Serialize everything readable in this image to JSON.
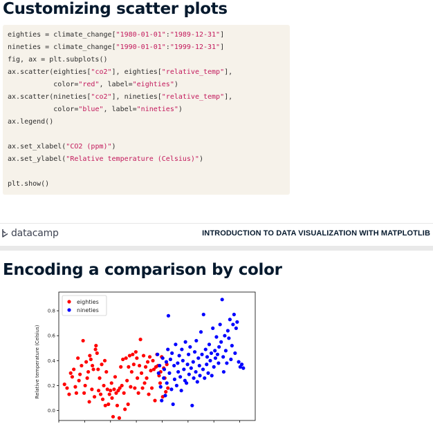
{
  "slide1": {
    "title": "Customizing scatter plots",
    "code_lines": [
      [
        {
          "t": "eighties = climate_change["
        },
        {
          "t": "\"1980-01-01\"",
          "s": 1
        },
        {
          "t": ":"
        },
        {
          "t": "\"1989-12-31\"",
          "s": 1
        },
        {
          "t": "]"
        }
      ],
      [
        {
          "t": "nineties = climate_change["
        },
        {
          "t": "\"1990-01-01\"",
          "s": 1
        },
        {
          "t": ":"
        },
        {
          "t": "\"1999-12-31\"",
          "s": 1
        },
        {
          "t": "]"
        }
      ],
      [
        {
          "t": "fig, ax = plt.subplots()"
        }
      ],
      [
        {
          "t": "ax.scatter(eighties["
        },
        {
          "t": "\"co2\"",
          "s": 1
        },
        {
          "t": "], eighties["
        },
        {
          "t": "\"relative_temp\"",
          "s": 1
        },
        {
          "t": "],"
        }
      ],
      [
        {
          "t": "           color="
        },
        {
          "t": "\"red\"",
          "s": 1
        },
        {
          "t": ", label="
        },
        {
          "t": "\"eighties\"",
          "s": 1
        },
        {
          "t": ")"
        }
      ],
      [
        {
          "t": "ax.scatter(nineties["
        },
        {
          "t": "\"co2\"",
          "s": 1
        },
        {
          "t": "], nineties["
        },
        {
          "t": "\"relative_temp\"",
          "s": 1
        },
        {
          "t": "],"
        }
      ],
      [
        {
          "t": "           color="
        },
        {
          "t": "\"blue\"",
          "s": 1
        },
        {
          "t": ", label="
        },
        {
          "t": "\"nineties\"",
          "s": 1
        },
        {
          "t": ")"
        }
      ],
      [
        {
          "t": "ax.legend()"
        }
      ],
      [],
      [
        {
          "t": "ax.set_xlabel("
        },
        {
          "t": "\"CO2 (ppm)\"",
          "s": 1
        },
        {
          "t": ")"
        }
      ],
      [
        {
          "t": "ax.set_ylabel("
        },
        {
          "t": "\"Relative temperature (Celsius)\"",
          "s": 1
        },
        {
          "t": ")"
        }
      ],
      [],
      [
        {
          "t": "plt.show()"
        }
      ]
    ]
  },
  "footer": {
    "brand": "datacamp",
    "course_title": "INTRODUCTION TO DATA VISUALIZATION WITH MATPLOTLIB"
  },
  "slide2": {
    "title": "Encoding a comparison by color"
  },
  "colors": {
    "eighties": "#ff0000",
    "nineties": "#0000ff",
    "code_string": "#c2185b",
    "title": "#05192d"
  },
  "chart_data": {
    "type": "scatter",
    "title": "",
    "xlabel": "",
    "ylabel": "Relative temperature (Celsius)",
    "xlim": [
      335,
      373
    ],
    "ylim": [
      -0.08,
      0.95
    ],
    "yticks": [
      0.0,
      0.2,
      0.4,
      0.6,
      0.8
    ],
    "yticklabels": [
      "0.0",
      "0.2",
      "0.4",
      "0.6",
      "0.8"
    ],
    "xticks": [
      335,
      340,
      345,
      350,
      355,
      360,
      365,
      370
    ],
    "legend": "top-left",
    "series": [
      {
        "name": "eighties",
        "color": "#ff0000",
        "points": [
          [
            336.1,
            0.21
          ],
          [
            336.6,
            0.18
          ],
          [
            337.0,
            0.13
          ],
          [
            337.3,
            0.3
          ],
          [
            337.6,
            0.27
          ],
          [
            337.9,
            0.33
          ],
          [
            338.2,
            0.19
          ],
          [
            338.4,
            0.14
          ],
          [
            338.7,
            0.42
          ],
          [
            338.9,
            0.24
          ],
          [
            339.1,
            0.29
          ],
          [
            339.4,
            0.36
          ],
          [
            339.7,
            0.56
          ],
          [
            339.9,
            0.14
          ],
          [
            340.1,
            0.2
          ],
          [
            340.3,
            0.39
          ],
          [
            340.5,
            0.26
          ],
          [
            340.7,
            0.31
          ],
          [
            340.9,
            0.07
          ],
          [
            341.0,
            0.44
          ],
          [
            341.2,
            0.41
          ],
          [
            341.4,
            0.17
          ],
          [
            341.5,
            0.36
          ],
          [
            341.7,
            0.33
          ],
          [
            341.9,
            0.11
          ],
          [
            342.1,
            0.49
          ],
          [
            342.2,
            0.52
          ],
          [
            342.4,
            0.46
          ],
          [
            342.6,
            0.33
          ],
          [
            342.7,
            0.16
          ],
          [
            342.9,
            0.26
          ],
          [
            343.1,
            0.13
          ],
          [
            343.3,
            0.37
          ],
          [
            343.5,
            0.09
          ],
          [
            343.7,
            0.2
          ],
          [
            343.9,
            0.4
          ],
          [
            344.0,
            0.04
          ],
          [
            344.2,
            0.31
          ],
          [
            344.4,
            0.17
          ],
          [
            344.6,
            0.05
          ],
          [
            344.8,
            0.13
          ],
          [
            345.0,
            0.16
          ],
          [
            345.2,
            0.22
          ],
          [
            345.3,
            0.1
          ],
          [
            345.5,
            -0.05
          ],
          [
            345.7,
            0.17
          ],
          [
            345.9,
            0.27
          ],
          [
            346.1,
            0.14
          ],
          [
            346.3,
            0.04
          ],
          [
            346.5,
            0.16
          ],
          [
            346.7,
            -0.06
          ],
          [
            346.8,
            0.18
          ],
          [
            347.0,
            0.35
          ],
          [
            347.2,
            0.2
          ],
          [
            347.4,
            0.41
          ],
          [
            347.6,
            0.14
          ],
          [
            347.8,
            0.01
          ],
          [
            348.0,
            0.42
          ],
          [
            348.2,
            0.24
          ],
          [
            348.4,
            0.05
          ],
          [
            348.5,
            0.35
          ],
          [
            348.7,
            0.44
          ],
          [
            348.9,
            0.19
          ],
          [
            349.1,
            0.31
          ],
          [
            349.3,
            0.45
          ],
          [
            349.5,
            0.37
          ],
          [
            349.7,
            0.18
          ],
          [
            349.9,
            0.47
          ],
          [
            350.1,
            0.42
          ],
          [
            350.2,
            0.26
          ],
          [
            350.4,
            0.14
          ],
          [
            350.6,
            0.36
          ],
          [
            350.8,
            0.57
          ],
          [
            351.0,
            0.3
          ],
          [
            351.2,
            0.18
          ],
          [
            351.4,
            0.44
          ],
          [
            351.6,
            0.22
          ],
          [
            351.8,
            0.35
          ],
          [
            352.0,
            0.26
          ],
          [
            352.2,
            0.39
          ],
          [
            352.4,
            0.13
          ],
          [
            352.6,
            0.43
          ],
          [
            352.8,
            0.32
          ],
          [
            353.0,
            0.18
          ],
          [
            353.2,
            0.4
          ],
          [
            353.4,
            0.33
          ],
          [
            353.6,
            0.08
          ],
          [
            353.8,
            0.35
          ],
          [
            354.0,
            0.45
          ],
          [
            354.2,
            0.36
          ],
          [
            354.4,
            0.28
          ],
          [
            354.6,
            0.22
          ],
          [
            354.7,
            0.31
          ],
          [
            354.9,
            0.43
          ],
          [
            355.1,
            0.11
          ],
          [
            355.3,
            0.34
          ],
          [
            355.5,
            0.26
          ],
          [
            355.7,
            0.15
          ],
          [
            355.9,
            0.37
          ],
          [
            356.1,
            0.18
          ]
        ]
      },
      {
        "name": "nineties",
        "color": "#0000ff",
        "points": [
          [
            354.1,
            0.45
          ],
          [
            354.3,
            0.3
          ],
          [
            354.5,
            0.36
          ],
          [
            354.7,
            0.19
          ],
          [
            354.9,
            0.08
          ],
          [
            355.1,
            0.42
          ],
          [
            355.3,
            0.26
          ],
          [
            355.4,
            0.33
          ],
          [
            355.6,
            0.12
          ],
          [
            355.8,
            0.39
          ],
          [
            355.9,
            0.22
          ],
          [
            356.1,
            0.49
          ],
          [
            356.2,
            0.76
          ],
          [
            356.4,
            0.3
          ],
          [
            356.6,
            0.41
          ],
          [
            356.8,
            0.17
          ],
          [
            356.9,
            0.46
          ],
          [
            357.1,
            0.05
          ],
          [
            357.3,
            0.36
          ],
          [
            357.4,
            0.25
          ],
          [
            357.6,
            0.53
          ],
          [
            357.8,
            0.2
          ],
          [
            358.0,
            0.38
          ],
          [
            358.1,
            0.31
          ],
          [
            358.3,
            0.44
          ],
          [
            358.5,
            0.27
          ],
          [
            358.7,
            0.16
          ],
          [
            358.8,
            0.49
          ],
          [
            359.0,
            0.4
          ],
          [
            359.2,
            0.33
          ],
          [
            359.4,
            0.24
          ],
          [
            359.5,
            0.55
          ],
          [
            359.7,
            0.22
          ],
          [
            359.9,
            0.37
          ],
          [
            360.1,
            0.45
          ],
          [
            360.2,
            0.29
          ],
          [
            360.4,
            0.51
          ],
          [
            360.6,
            0.34
          ],
          [
            360.8,
            0.04
          ],
          [
            361.0,
            0.39
          ],
          [
            361.1,
            0.26
          ],
          [
            361.3,
            0.47
          ],
          [
            361.5,
            0.31
          ],
          [
            361.6,
            0.56
          ],
          [
            361.8,
            0.23
          ],
          [
            362.0,
            0.42
          ],
          [
            362.2,
            0.36
          ],
          [
            362.3,
            0.28
          ],
          [
            362.5,
            0.63
          ],
          [
            362.7,
            0.45
          ],
          [
            362.9,
            0.33
          ],
          [
            363.0,
            0.77
          ],
          [
            363.2,
            0.26
          ],
          [
            363.4,
            0.49
          ],
          [
            363.6,
            0.37
          ],
          [
            363.7,
            0.43
          ],
          [
            363.9,
            0.3
          ],
          [
            364.1,
            0.53
          ],
          [
            364.3,
            0.4
          ],
          [
            364.5,
            0.46
          ],
          [
            364.6,
            0.28
          ],
          [
            364.8,
            0.66
          ],
          [
            365.0,
            0.35
          ],
          [
            365.2,
            0.48
          ],
          [
            365.3,
            0.42
          ],
          [
            365.5,
            0.59
          ],
          [
            365.7,
            0.45
          ],
          [
            365.9,
            0.38
          ],
          [
            366.0,
            0.51
          ],
          [
            366.2,
            0.69
          ],
          [
            366.4,
            0.55
          ],
          [
            366.6,
            0.89
          ],
          [
            366.8,
            0.43
          ],
          [
            366.9,
            0.31
          ],
          [
            367.1,
            0.6
          ],
          [
            367.3,
            0.48
          ],
          [
            367.5,
            0.38
          ],
          [
            367.7,
            0.64
          ],
          [
            367.9,
            0.58
          ],
          [
            368.1,
            0.73
          ],
          [
            368.3,
            0.41
          ],
          [
            368.5,
            0.52
          ],
          [
            368.7,
            0.69
          ],
          [
            368.9,
            0.77
          ],
          [
            369.1,
            0.46
          ],
          [
            369.3,
            0.66
          ],
          [
            369.5,
            0.71
          ],
          [
            369.8,
            0.39
          ],
          [
            370.1,
            0.35
          ],
          [
            370.4,
            0.37
          ],
          [
            370.7,
            0.34
          ]
        ]
      }
    ]
  }
}
